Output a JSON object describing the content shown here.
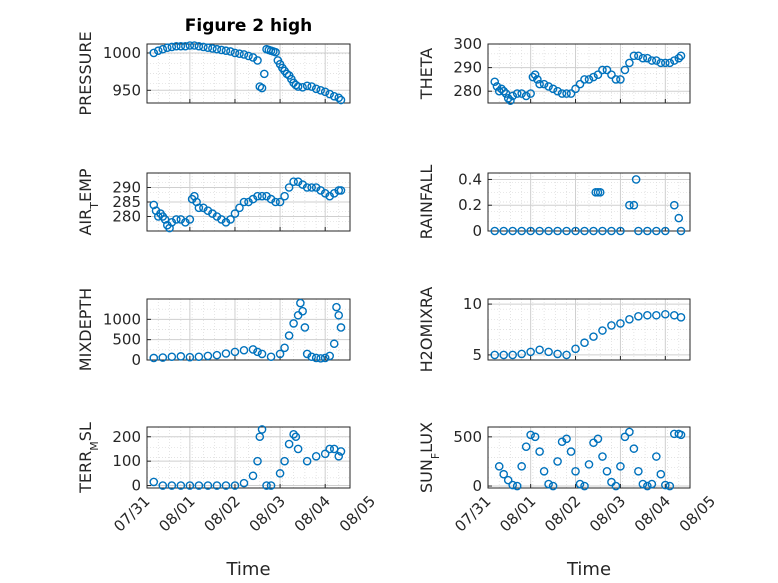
{
  "title": "Figure 2 high",
  "xlabel": "Time",
  "colors": {
    "marker": "#0072BD",
    "axis": "#262626",
    "grid": "#d9d9d9"
  },
  "chart_data": [
    {
      "type": "scatter",
      "ylabel": "PRESSURE",
      "ylim": [
        933,
        1012
      ],
      "yticks": [
        950,
        1000
      ],
      "x": [
        0.2,
        0.3,
        0.4,
        0.5,
        0.6,
        0.7,
        0.8,
        0.9,
        1.0,
        1.1,
        1.2,
        1.3,
        1.4,
        1.5,
        1.6,
        1.7,
        1.8,
        1.9,
        2.0,
        2.1,
        2.2,
        2.3,
        2.4,
        2.5,
        2.55,
        2.6,
        2.65,
        2.7,
        2.75,
        2.8,
        2.85,
        2.9,
        2.95,
        3.0,
        3.05,
        3.1,
        3.15,
        3.2,
        3.25,
        3.3,
        3.35,
        3.4,
        3.5,
        3.6,
        3.7,
        3.8,
        3.9,
        4.0,
        4.1,
        4.2,
        4.3,
        4.35
      ],
      "y": [
        1000,
        1003,
        1005,
        1007,
        1008,
        1009,
        1009,
        1009,
        1010,
        1010,
        1009,
        1008,
        1007,
        1006,
        1005,
        1004,
        1003,
        1002,
        1000,
        999,
        998,
        996,
        994,
        990,
        955,
        953,
        972,
        1005,
        1004,
        1003,
        1002,
        1001,
        990,
        985,
        980,
        976,
        972,
        970,
        965,
        960,
        957,
        955,
        954,
        956,
        955,
        952,
        950,
        948,
        945,
        942,
        940,
        937
      ]
    },
    {
      "type": "scatter",
      "ylabel": "THETA",
      "ylim": [
        275,
        300
      ],
      "yticks": [
        280,
        290,
        300
      ],
      "x": [
        0.2,
        0.25,
        0.3,
        0.35,
        0.4,
        0.45,
        0.5,
        0.55,
        0.6,
        0.7,
        0.8,
        0.9,
        1.0,
        1.05,
        1.1,
        1.15,
        1.2,
        1.3,
        1.4,
        1.5,
        1.6,
        1.7,
        1.8,
        1.9,
        2.0,
        2.1,
        2.2,
        2.3,
        2.4,
        2.5,
        2.6,
        2.7,
        2.8,
        2.9,
        3.0,
        3.1,
        3.2,
        3.3,
        3.4,
        3.5,
        3.6,
        3.7,
        3.8,
        3.9,
        4.0,
        4.1,
        4.2,
        4.3,
        4.35
      ],
      "y": [
        284,
        282,
        280,
        281,
        280,
        279,
        277,
        276,
        278,
        279,
        279,
        278,
        279,
        286,
        287,
        285,
        283,
        283,
        282,
        281,
        280,
        279,
        279,
        279,
        281,
        283,
        285,
        285,
        286,
        287,
        289,
        289,
        287,
        285,
        285,
        289,
        292,
        295,
        295,
        294,
        294,
        293,
        293,
        292,
        292,
        292,
        293,
        294,
        295
      ]
    },
    {
      "type": "scatter",
      "ylabel": "AIR_TEMP",
      "ylim": [
        275,
        295
      ],
      "yticks": [
        280,
        285,
        290
      ],
      "x": [
        0.2,
        0.25,
        0.3,
        0.35,
        0.4,
        0.45,
        0.5,
        0.55,
        0.6,
        0.7,
        0.8,
        0.9,
        1.0,
        1.05,
        1.1,
        1.15,
        1.2,
        1.3,
        1.4,
        1.5,
        1.6,
        1.7,
        1.8,
        1.9,
        2.0,
        2.1,
        2.2,
        2.3,
        2.4,
        2.5,
        2.6,
        2.7,
        2.8,
        2.9,
        3.0,
        3.1,
        3.2,
        3.3,
        3.4,
        3.5,
        3.6,
        3.7,
        3.8,
        3.9,
        4.0,
        4.1,
        4.2,
        4.3,
        4.35
      ],
      "y": [
        284,
        282,
        280,
        281,
        280,
        279,
        277,
        276,
        278,
        279,
        279,
        278,
        279,
        286,
        287,
        285,
        283,
        283,
        282,
        281,
        280,
        279,
        278,
        279,
        281,
        283,
        285,
        285,
        286,
        287,
        287,
        287,
        286,
        285,
        285,
        287,
        290,
        292,
        292,
        291,
        290,
        290,
        290,
        289,
        288,
        287,
        288,
        289,
        289
      ]
    },
    {
      "type": "scatter",
      "ylabel": "RAINFALL",
      "ylim": [
        0,
        0.45
      ],
      "yticks": [
        0,
        0.2,
        0.4
      ],
      "x": [
        0.2,
        0.4,
        0.6,
        0.8,
        1.0,
        1.2,
        1.4,
        1.6,
        1.8,
        2.0,
        2.2,
        2.4,
        2.45,
        2.5,
        2.55,
        2.6,
        2.8,
        3.0,
        3.2,
        3.3,
        3.35,
        3.4,
        3.6,
        3.8,
        4.0,
        4.2,
        4.3,
        4.35
      ],
      "y": [
        0,
        0,
        0,
        0,
        0,
        0,
        0,
        0,
        0,
        0,
        0,
        0,
        0.3,
        0.3,
        0.3,
        0,
        0,
        0,
        0.2,
        0.2,
        0.4,
        0,
        0,
        0,
        0,
        0.2,
        0.1,
        0
      ]
    },
    {
      "type": "scatter",
      "ylabel": "MIXDEPTH",
      "ylim": [
        0,
        1500
      ],
      "yticks": [
        0,
        500,
        1000
      ],
      "x": [
        0.2,
        0.4,
        0.6,
        0.8,
        1.0,
        1.2,
        1.4,
        1.6,
        1.8,
        2.0,
        2.2,
        2.4,
        2.5,
        2.6,
        2.8,
        3.0,
        3.1,
        3.2,
        3.3,
        3.4,
        3.45,
        3.5,
        3.55,
        3.6,
        3.7,
        3.8,
        3.9,
        4.0,
        4.1,
        4.2,
        4.25,
        4.3,
        4.35
      ],
      "y": [
        50,
        60,
        80,
        90,
        70,
        80,
        100,
        120,
        160,
        200,
        240,
        260,
        200,
        150,
        80,
        150,
        300,
        600,
        900,
        1100,
        1400,
        1200,
        800,
        150,
        80,
        50,
        40,
        50,
        100,
        400,
        1300,
        1100,
        800
      ]
    },
    {
      "type": "scatter",
      "ylabel": "H2OMIXRA",
      "ylim": [
        4.5,
        10.5
      ],
      "yticks": [
        5,
        10
      ],
      "x": [
        0.2,
        0.4,
        0.6,
        0.8,
        1.0,
        1.2,
        1.4,
        1.6,
        1.8,
        2.0,
        2.2,
        2.4,
        2.6,
        2.8,
        3.0,
        3.2,
        3.4,
        3.6,
        3.8,
        4.0,
        4.2,
        4.35
      ],
      "y": [
        5.0,
        5.0,
        5.0,
        5.1,
        5.3,
        5.5,
        5.3,
        5.1,
        5.0,
        5.6,
        6.2,
        6.8,
        7.4,
        7.9,
        8.1,
        8.5,
        8.8,
        8.9,
        8.9,
        9.0,
        8.9,
        8.7
      ]
    },
    {
      "type": "scatter",
      "ylabel": "TERR_MSL",
      "ylim": [
        -10,
        240
      ],
      "yticks": [
        0,
        100,
        200
      ],
      "x": [
        0.2,
        0.4,
        0.6,
        0.8,
        1.0,
        1.2,
        1.4,
        1.6,
        1.8,
        2.0,
        2.2,
        2.4,
        2.5,
        2.55,
        2.6,
        2.7,
        2.8,
        3.0,
        3.1,
        3.2,
        3.3,
        3.35,
        3.4,
        3.6,
        3.8,
        4.0,
        4.1,
        4.2,
        4.3,
        4.35
      ],
      "y": [
        15,
        0,
        0,
        0,
        0,
        0,
        0,
        0,
        0,
        0,
        10,
        40,
        100,
        200,
        230,
        0,
        0,
        50,
        100,
        170,
        210,
        200,
        150,
        100,
        120,
        130,
        150,
        150,
        120,
        140
      ]
    },
    {
      "type": "scatter",
      "ylabel": "SUN_FLUX",
      "ylim": [
        -20,
        600
      ],
      "yticks": [
        0,
        500
      ],
      "x": [
        0.3,
        0.4,
        0.5,
        0.6,
        0.7,
        0.8,
        0.9,
        1.0,
        1.1,
        1.2,
        1.3,
        1.4,
        1.5,
        1.6,
        1.7,
        1.8,
        1.9,
        2.0,
        2.1,
        2.2,
        2.3,
        2.4,
        2.5,
        2.6,
        2.7,
        2.8,
        2.9,
        3.0,
        3.1,
        3.2,
        3.3,
        3.4,
        3.5,
        3.6,
        3.7,
        3.8,
        3.9,
        4.0,
        4.1,
        4.2,
        4.3,
        4.35
      ],
      "y": [
        200,
        120,
        60,
        10,
        0,
        200,
        400,
        520,
        500,
        350,
        150,
        20,
        0,
        250,
        450,
        480,
        350,
        150,
        20,
        0,
        220,
        440,
        480,
        300,
        150,
        40,
        0,
        200,
        500,
        550,
        380,
        150,
        20,
        0,
        20,
        300,
        120,
        10,
        0,
        530,
        530,
        520
      ]
    }
  ],
  "x_axis": {
    "ticks": [
      "07/31",
      "08/01",
      "08/02",
      "08/03",
      "08/04",
      "08/05"
    ],
    "tick_values": [
      0,
      1,
      2,
      3,
      4,
      5
    ]
  }
}
